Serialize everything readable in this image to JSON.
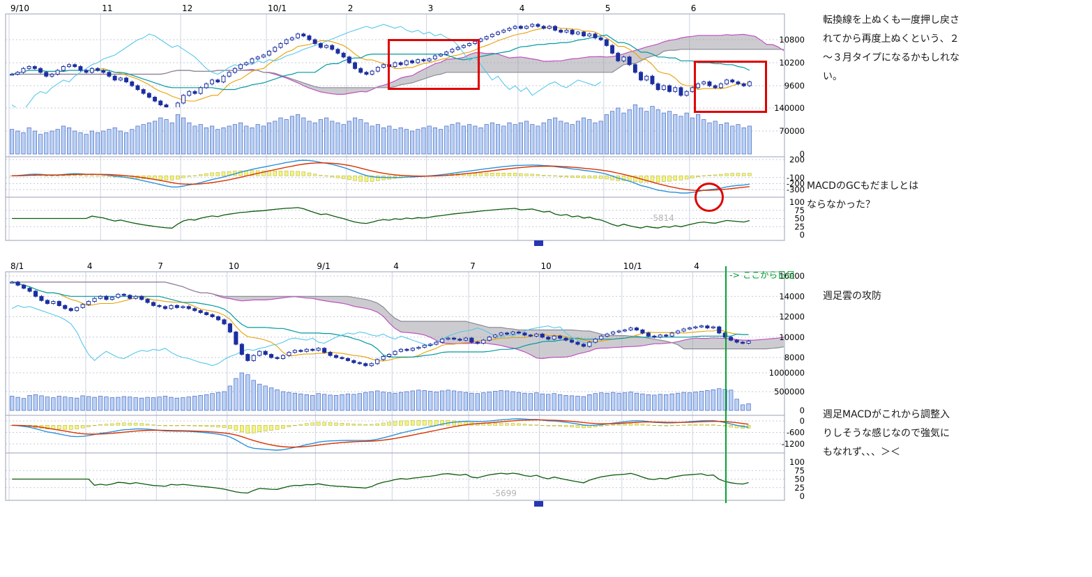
{
  "annotations": {
    "top_right_1": {
      "lines": [
        "転換線を上ぬくも一度押し戻さ",
        "れてから再度上ぬくという、２",
        "〜３月タイプになるかもしれな",
        "い。"
      ]
    },
    "top_right_2": {
      "lines": [
        "MACDのGCもだましとは",
        "ならなかった？"
      ]
    },
    "bottom_right_1": {
      "lines": [
        "週足雲の攻防"
      ]
    },
    "bottom_right_2": {
      "lines": [
        "週足MACDがこれから調整入",
        "りしそうな感じなので強気に",
        "もなれず、、、＞＜"
      ]
    },
    "green_marker_label": "-> ここから日足",
    "daily_value_label": "-5814",
    "weekly_value_label": "-5699"
  },
  "colors": {
    "candle_down": "#1c2fa0",
    "candle_up_fill": "#ffffff",
    "vol_fill": "#b9d2f2",
    "vol_stroke": "#4a66c8",
    "tenkan": "#e8a000",
    "kijun": "#009aa0",
    "chikou": "#57c8e8",
    "senkou_a": "#c050c0",
    "senkou_b": "#8a8a96",
    "cloud_fill": "#9a9aa2",
    "macd": "#2a90d8",
    "signal": "#d83000",
    "hist_fill": "#f4f480",
    "hist_stroke": "#b8b840",
    "rsi": "#0a5a0a",
    "highlight": "#e00000",
    "green_marker": "#00a32e",
    "grid": "#ccd3e2"
  },
  "chart_data": [
    {
      "id": "daily",
      "type": "candlestick",
      "timeframe": "daily",
      "overlays": [
        "ichimoku-cloud",
        "tenkan",
        "kijun",
        "chikou"
      ],
      "lower_indicators": [
        "volume",
        "macd",
        "rsi"
      ],
      "x_labels": [
        {
          "label": "9/10",
          "idx": 0
        },
        {
          "label": "11",
          "idx": 16
        },
        {
          "label": "12",
          "idx": 30
        },
        {
          "label": "10/1",
          "idx": 45
        },
        {
          "label": "2",
          "idx": 59
        },
        {
          "label": "3",
          "idx": 73
        },
        {
          "label": "4",
          "idx": 89
        },
        {
          "label": "5",
          "idx": 104
        },
        {
          "label": "6",
          "idx": 119
        }
      ],
      "price_ticks": [
        10800,
        10200,
        9600
      ],
      "volume_ticks": [
        140000,
        70000,
        0
      ],
      "macd_ticks": [
        200,
        -100,
        -200,
        -300
      ],
      "rsi_ticks": [
        100,
        75,
        50,
        25,
        0
      ],
      "volume_unit": 1000,
      "closes": [
        9900,
        9950,
        10050,
        10100,
        10050,
        9950,
        9850,
        9900,
        10000,
        10100,
        10150,
        10100,
        10000,
        9950,
        10050,
        10000,
        9950,
        9850,
        9750,
        9800,
        9700,
        9600,
        9500,
        9400,
        9300,
        9200,
        9100,
        9000,
        8950,
        9150,
        9350,
        9450,
        9400,
        9550,
        9650,
        9750,
        9700,
        9850,
        9950,
        10050,
        10150,
        10200,
        10300,
        10350,
        10400,
        10500,
        10600,
        10700,
        10800,
        10850,
        10950,
        10900,
        10800,
        10700,
        10600,
        10650,
        10550,
        10450,
        10350,
        10200,
        10050,
        9950,
        9900,
        9980,
        10080,
        10150,
        10100,
        10200,
        10150,
        10250,
        10200,
        10280,
        10250,
        10300,
        10380,
        10420,
        10480,
        10550,
        10600,
        10650,
        10700,
        10760,
        10820,
        10880,
        10940,
        11000,
        11050,
        11100,
        11150,
        11100,
        11150,
        11200,
        11150,
        11100,
        11150,
        11050,
        11000,
        11050,
        10950,
        11000,
        10900,
        10950,
        10850,
        10800,
        10650,
        10450,
        10250,
        10350,
        10150,
        9950,
        9750,
        9850,
        9650,
        9500,
        9600,
        9450,
        9550,
        9350,
        9450,
        9550,
        9650,
        9700,
        9600,
        9550,
        9650,
        9750,
        9700,
        9650,
        9600,
        9700
      ],
      "volumes": [
        75,
        70,
        65,
        80,
        70,
        60,
        65,
        70,
        75,
        85,
        80,
        70,
        65,
        60,
        70,
        65,
        70,
        75,
        80,
        70,
        65,
        75,
        85,
        90,
        95,
        100,
        110,
        105,
        95,
        120,
        110,
        95,
        85,
        90,
        80,
        85,
        75,
        80,
        85,
        90,
        95,
        85,
        80,
        90,
        85,
        95,
        100,
        110,
        105,
        115,
        120,
        110,
        100,
        95,
        105,
        110,
        100,
        95,
        90,
        100,
        110,
        105,
        95,
        85,
        90,
        80,
        85,
        75,
        80,
        75,
        70,
        75,
        80,
        85,
        80,
        75,
        85,
        90,
        95,
        85,
        90,
        85,
        80,
        90,
        95,
        90,
        85,
        95,
        90,
        95,
        100,
        90,
        85,
        95,
        105,
        110,
        100,
        95,
        90,
        100,
        110,
        105,
        95,
        100,
        120,
        130,
        140,
        125,
        135,
        150,
        140,
        130,
        145,
        135,
        125,
        130,
        120,
        115,
        125,
        110,
        120,
        105,
        95,
        100,
        90,
        95,
        85,
        90,
        80,
        85
      ]
    },
    {
      "id": "weekly",
      "type": "candlestick",
      "timeframe": "weekly",
      "overlays": [
        "ichimoku-cloud",
        "tenkan",
        "kijun",
        "chikou"
      ],
      "lower_indicators": [
        "volume",
        "macd",
        "rsi"
      ],
      "x_labels": [
        {
          "label": "8/1",
          "idx": 0
        },
        {
          "label": "4",
          "idx": 13
        },
        {
          "label": "7",
          "idx": 25
        },
        {
          "label": "10",
          "idx": 37
        },
        {
          "label": "9/1",
          "idx": 52
        },
        {
          "label": "4",
          "idx": 65
        },
        {
          "label": "7",
          "idx": 78
        },
        {
          "label": "10",
          "idx": 90
        },
        {
          "label": "10/1",
          "idx": 104
        },
        {
          "label": "4",
          "idx": 116
        }
      ],
      "price_ticks": [
        16000,
        14000,
        12000,
        10000,
        8000
      ],
      "volume_ticks": [
        1000000,
        500000,
        0
      ],
      "macd_ticks": [
        0,
        -600,
        -1200
      ],
      "rsi_ticks": [
        100,
        75,
        50,
        25,
        0
      ],
      "volume_unit": 1000,
      "closes": [
        15400,
        15100,
        14800,
        14500,
        14000,
        13600,
        13300,
        13500,
        13100,
        12800,
        12600,
        12900,
        13200,
        13500,
        13800,
        14000,
        13700,
        13900,
        14200,
        14100,
        13800,
        14000,
        13700,
        13400,
        13100,
        13000,
        12800,
        13100,
        12900,
        13000,
        12800,
        12600,
        12400,
        12200,
        12000,
        11700,
        11300,
        10500,
        9300,
        8300,
        7700,
        8200,
        8600,
        8300,
        8000,
        7900,
        8200,
        8500,
        8700,
        8600,
        8800,
        8700,
        8900,
        8500,
        8200,
        8000,
        7900,
        7700,
        7500,
        7400,
        7200,
        7400,
        7800,
        8100,
        8300,
        8600,
        8800,
        8700,
        8900,
        9000,
        9200,
        9300,
        9500,
        9800,
        9900,
        9800,
        9700,
        9900,
        9500,
        9400,
        9700,
        10000,
        10200,
        10400,
        10300,
        10500,
        10400,
        10200,
        10100,
        10300,
        10000,
        9800,
        10100,
        9900,
        9700,
        9500,
        9300,
        9100,
        9500,
        9800,
        10100,
        10300,
        10500,
        10600,
        10700,
        10900,
        10700,
        10400,
        10100,
        10000,
        10200,
        10100,
        10400,
        10600,
        10800,
        10900,
        11000,
        11100,
        10900,
        11000,
        10400,
        10000,
        9700,
        9500,
        9400,
        9600
      ],
      "volumes": [
        380,
        350,
        320,
        400,
        420,
        390,
        360,
        340,
        380,
        360,
        340,
        330,
        390,
        370,
        350,
        380,
        360,
        340,
        350,
        370,
        360,
        340,
        330,
        350,
        340,
        360,
        380,
        350,
        330,
        340,
        360,
        380,
        400,
        420,
        450,
        480,
        500,
        650,
        850,
        1000,
        950,
        800,
        700,
        650,
        600,
        550,
        500,
        480,
        460,
        440,
        420,
        400,
        450,
        430,
        410,
        400,
        420,
        440,
        430,
        450,
        480,
        500,
        520,
        490,
        470,
        460,
        480,
        500,
        520,
        540,
        530,
        510,
        490,
        520,
        540,
        520,
        500,
        480,
        460,
        450,
        470,
        490,
        510,
        530,
        520,
        500,
        480,
        460,
        450,
        470,
        440,
        430,
        450,
        420,
        400,
        390,
        380,
        370,
        420,
        450,
        470,
        460,
        480,
        460,
        470,
        490,
        460,
        440,
        420,
        410,
        430,
        420,
        440,
        460,
        480,
        470,
        490,
        510,
        530,
        550,
        580,
        560,
        540,
        300,
        150,
        180
      ]
    }
  ]
}
